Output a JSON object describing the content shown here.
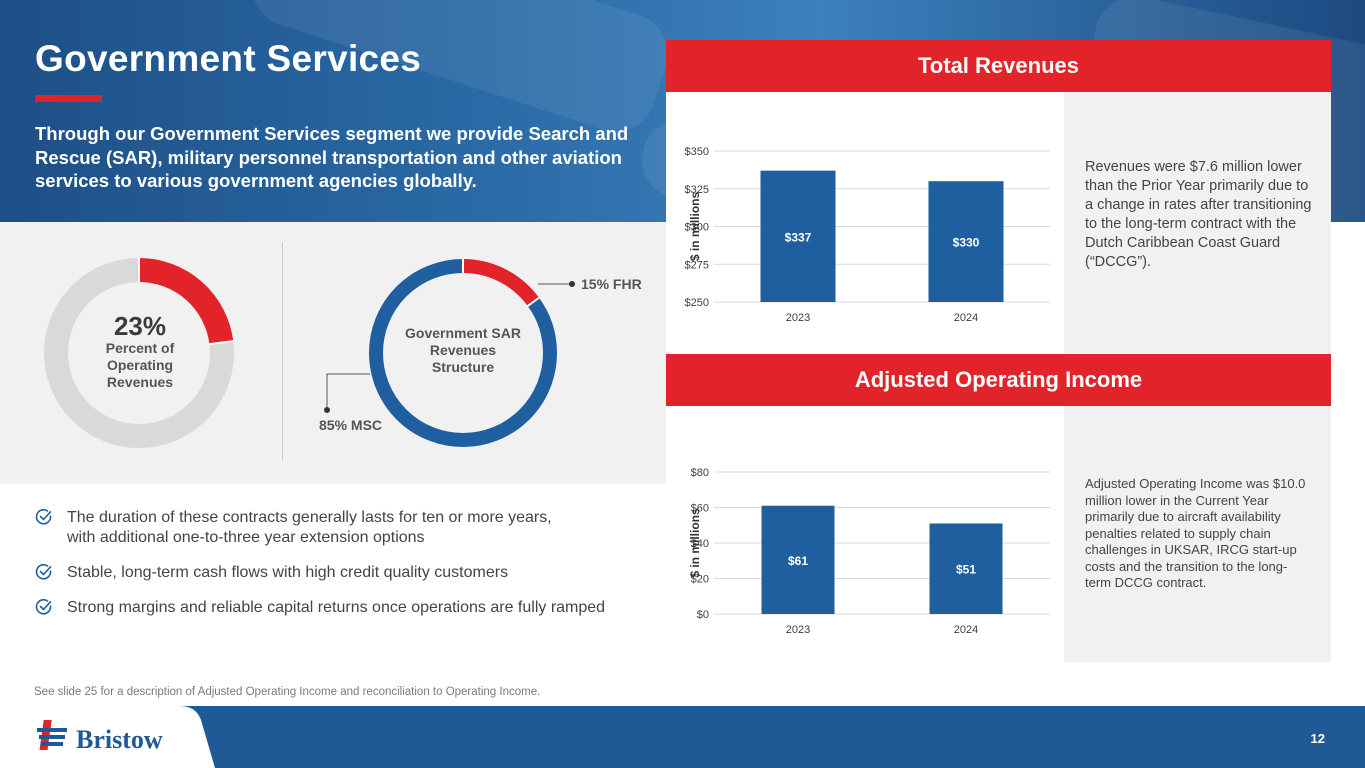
{
  "header": {
    "title": "Government Services",
    "intro": "Through our Government Services segment we provide Search and Rescue (SAR), military personnel transportation and other aviation services to various government agencies globally."
  },
  "donut_share": {
    "percent_text": "23%",
    "label": "Percent of Operating Revenues",
    "value": 23,
    "colors": {
      "highlight": "#e2232a",
      "rest": "#d9d9d9"
    }
  },
  "donut_structure": {
    "center_label": "Government SAR Revenues Structure",
    "segments": [
      {
        "label": "15% FHR",
        "value": 15,
        "color": "#e2232a"
      },
      {
        "label": "85% MSC",
        "value": 85,
        "color": "#1f5fa0"
      }
    ]
  },
  "bullets": [
    {
      "text_line1": "The duration of these contracts generally lasts for ten or more years,",
      "text_line2": "with additional one-to-three year extension options"
    },
    {
      "text_line1": "Stable, long-term cash flows with high credit quality customers"
    },
    {
      "text_line1": "Strong margins and reliable capital returns once operations are fully ramped"
    }
  ],
  "cards": {
    "revenues": {
      "header": "Total Revenues",
      "note": "Revenues were $7.6 million lower than the Prior Year primarily due to a change in rates after transitioning to the long-term contract with the Dutch Caribbean Coast Guard (“DCCG”)."
    },
    "adjusted": {
      "header": "Adjusted Operating Income",
      "note": "Adjusted Operating Income was $10.0 million lower in the Current Year primarily due to aircraft availability penalties related to supply chain challenges in UKSAR, IRCG start-up costs and the transition to the long-term DCCG contract."
    }
  },
  "chart_data": [
    {
      "type": "bar",
      "title": "Total Revenues",
      "categories": [
        "2023",
        "2024"
      ],
      "values": [
        337,
        330
      ],
      "data_labels": [
        "$337",
        "$330"
      ],
      "ylabel": "$ in millions",
      "xlabel": "",
      "ylim": [
        250,
        350
      ],
      "yticks": [
        250,
        275,
        300,
        325,
        350
      ],
      "ytick_labels": [
        "$250",
        "$275",
        "$300",
        "$325",
        "$350"
      ],
      "grid": true,
      "bar_color": "#1f5fa0"
    },
    {
      "type": "bar",
      "title": "Adjusted Operating Income",
      "categories": [
        "2023",
        "2024"
      ],
      "values": [
        61,
        51
      ],
      "data_labels": [
        "$61",
        "$51"
      ],
      "ylabel": "$ in millions",
      "xlabel": "",
      "ylim": [
        0,
        80
      ],
      "yticks": [
        0,
        20,
        40,
        60,
        80
      ],
      "ytick_labels": [
        "$0",
        "$20",
        "$40",
        "$60",
        "$80"
      ],
      "grid": true,
      "bar_color": "#1f5fa0"
    }
  ],
  "footer": {
    "footnote": "See slide 25 for a description of Adjusted Operating Income and reconciliation to Operating Income.",
    "logo_text": "Bristow",
    "page_number": "12"
  },
  "colors": {
    "brand_red": "#e2232a",
    "brand_blue": "#1f5a96"
  }
}
